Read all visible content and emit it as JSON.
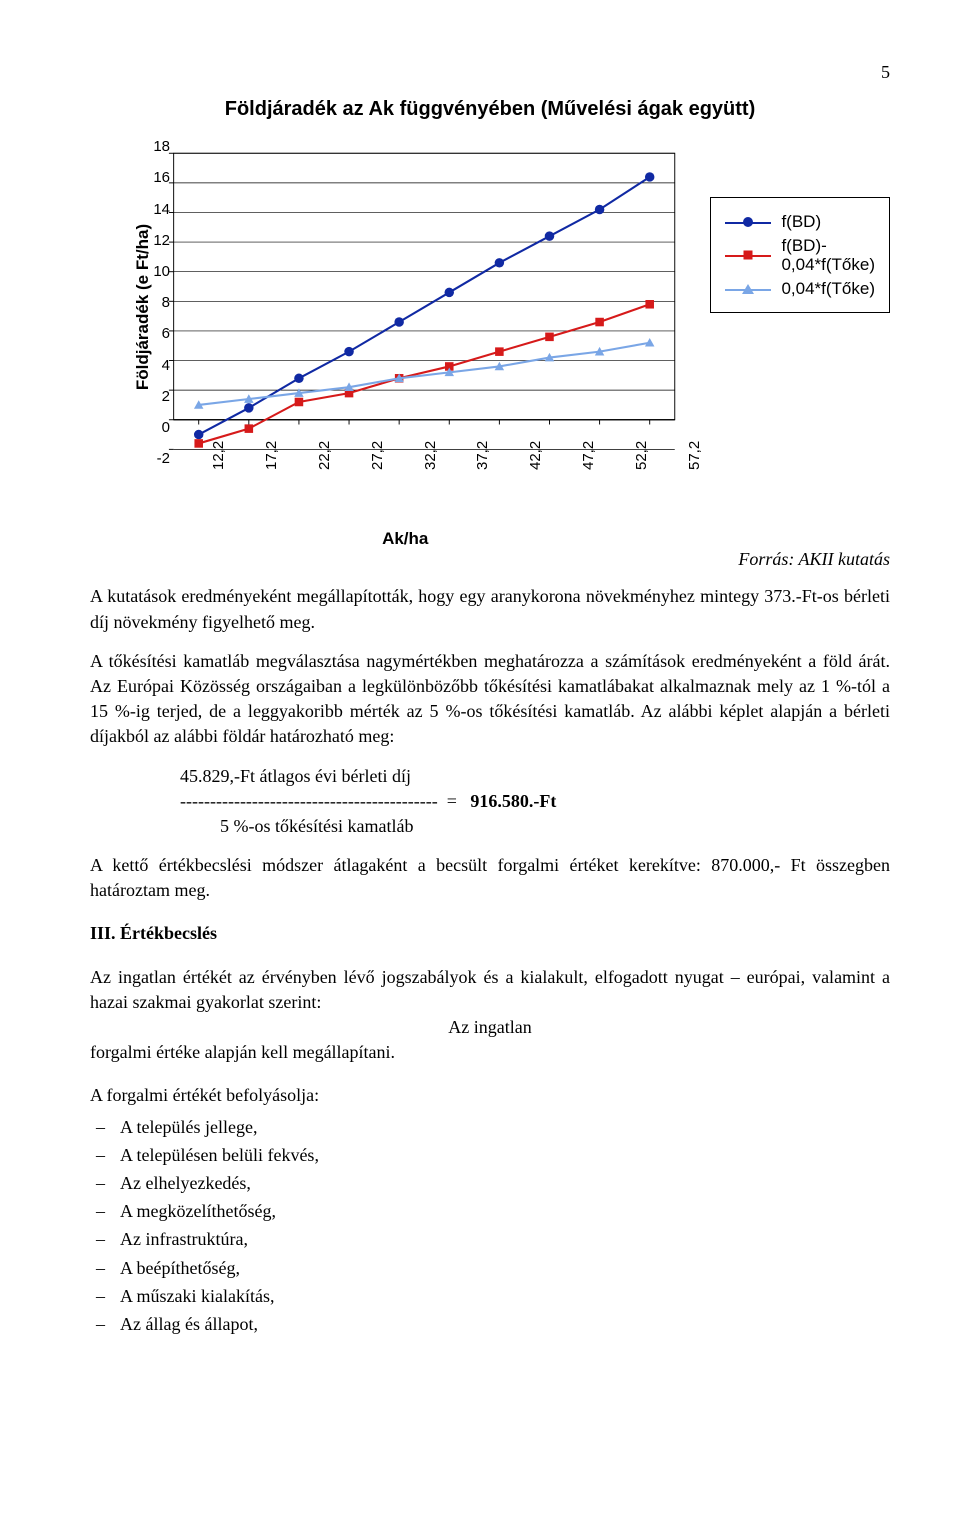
{
  "page_number": "5",
  "chart": {
    "type": "line",
    "title": "Földjáradék az Ak függvényében (Művelési ágak együtt)",
    "ylabel": "Földjáradék (e Ft/ha)",
    "xlabel": "Ak/ha",
    "x_categories": [
      "12,2",
      "17,2",
      "22,2",
      "27,2",
      "32,2",
      "37,2",
      "42,2",
      "47,2",
      "52,2",
      "57,2"
    ],
    "x_idx": [
      0,
      1,
      2,
      3,
      4,
      5,
      6,
      7,
      8,
      9
    ],
    "ylim": [
      -2,
      18
    ],
    "yticks": [
      -2,
      0,
      2,
      4,
      6,
      8,
      10,
      12,
      14,
      16,
      18
    ],
    "series": [
      {
        "key": "s1",
        "label": "f(BD)",
        "color": "#1029a3",
        "marker": "circle",
        "y": [
          -1.0,
          0.8,
          2.8,
          4.6,
          6.6,
          8.6,
          10.6,
          12.4,
          14.2,
          16.4
        ]
      },
      {
        "key": "s2",
        "label": "f(BD)-\n0,04*f(Tőke)",
        "color": "#d61a1a",
        "marker": "square",
        "y": [
          -1.6,
          -0.6,
          1.2,
          1.8,
          2.8,
          3.6,
          4.6,
          5.6,
          6.6,
          7.8
        ]
      },
      {
        "key": "s3",
        "label": "0,04*f(Tőke)",
        "color": "#7aa6e6",
        "marker": "triangle",
        "y": [
          1.0,
          1.4,
          1.8,
          2.2,
          2.8,
          3.2,
          3.6,
          4.2,
          4.6,
          5.2
        ]
      }
    ],
    "plot_bg": "#ffffff",
    "grid_color": "#000000",
    "axis_color": "#000000",
    "tick_font_size": 15,
    "label_font_size": 17,
    "legend_font_size": 17
  },
  "source_text": "Forrás: AKII kutatás",
  "para1": "A kutatások eredményeként megállapították, hogy egy aranykorona növekményhez mintegy 373.-Ft-os bérleti díj növekmény figyelhető meg.",
  "para2": "A tőkésítési kamatláb megválasztása nagymértékben meghatározza a számítások eredményeként a föld árát. Az Európai Közösség országaiban a legkülönbözőbb tőkésítési kamatlábakat alkalmaznak mely az 1 %-tól a 15 %-ig terjed, de a leggyakoribb mérték az 5 %-os tőkésítési kamatláb. Az alábbi képlet alapján a bérleti díjakból az alábbi földár határozható meg:",
  "calc_numer": "45.829,-Ft átlagos évi bérleti díj",
  "calc_denom": "5 %-os tőkésítési kamatláb",
  "calc_dashes": "-------------------------------------------",
  "calc_eq": "  =   ",
  "calc_result": "916.580.-Ft",
  "para3": "A kettő értékbecslési módszer átlagaként a becsült forgalmi értéket kerekítve: 870.000,- Ft összegben határoztam meg.",
  "sec3_title": "III. Értékbecslés",
  "sec3_p1a": "Az ingatlan értékét az érvényben lévő jogszabályok és a kialakult, elfogadott nyugat – európai, valamint a hazai szakmai gyakorlat szerint:",
  "sec3_center": "Az ingatlan",
  "sec3_p1b": "forgalmi értéke alapján kell megállapítani.",
  "sec3_listhead": "A forgalmi értékét befolyásolja:",
  "sec3_list": [
    "A település jellege,",
    "A településen belüli fekvés,",
    "Az elhelyezkedés,",
    "A megközelíthetőség,",
    "Az infrastruktúra,",
    "A beépíthetőség,",
    "A műszaki kialakítás,",
    "Az állag és állapot,"
  ]
}
